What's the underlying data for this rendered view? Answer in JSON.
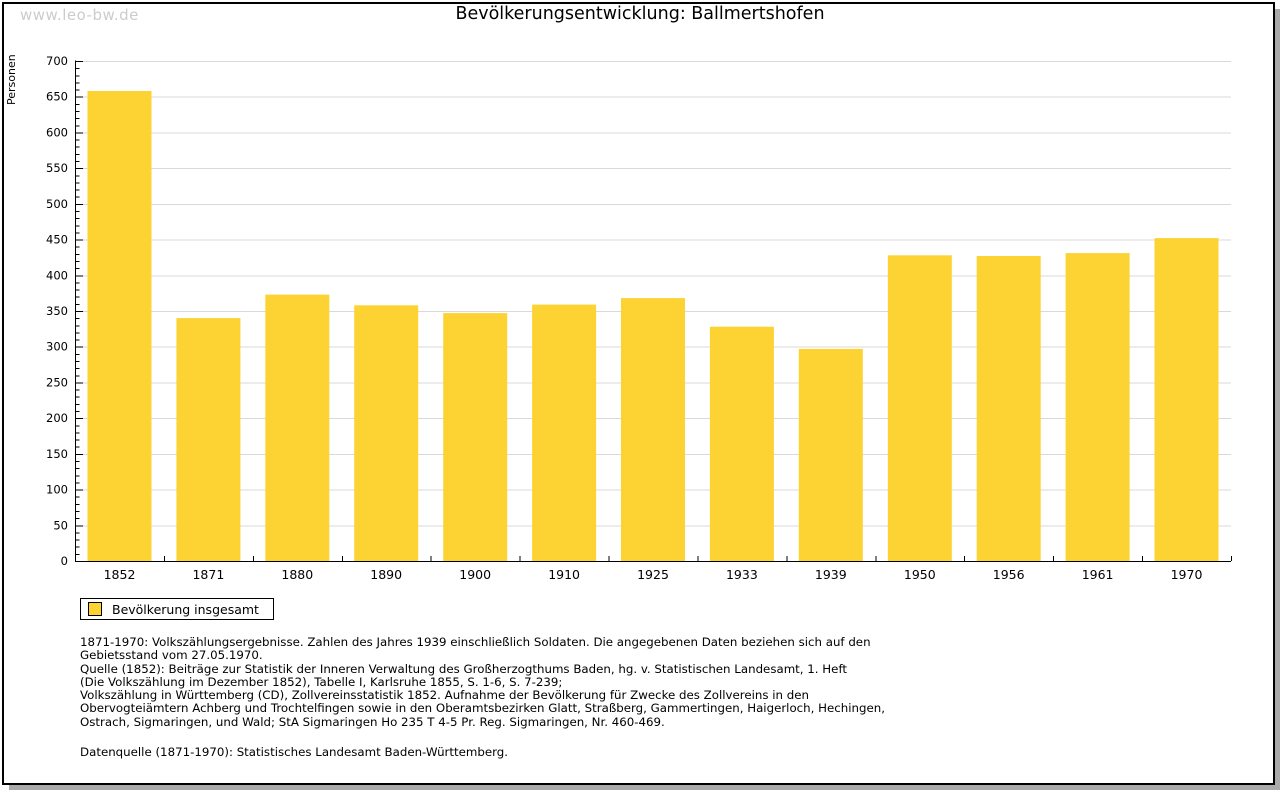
{
  "page": {
    "watermark": "www.leo-bw.de",
    "title": "Bevölkerungsentwicklung: Ballmertshofen"
  },
  "chart_data": {
    "type": "bar",
    "title": "Bevölkerungsentwicklung: Ballmertshofen",
    "xlabel": "",
    "ylabel": "Personen",
    "categories": [
      "1852",
      "1871",
      "1880",
      "1890",
      "1900",
      "1910",
      "1925",
      "1933",
      "1939",
      "1950",
      "1956",
      "1961",
      "1970"
    ],
    "series": [
      {
        "name": "Bevölkerung insgesamt",
        "values": [
          658,
          340,
          373,
          358,
          347,
          359,
          368,
          328,
          297,
          428,
          427,
          431,
          452
        ]
      }
    ],
    "ylim": [
      0,
      700
    ],
    "ytick_step": 50,
    "yminor_step": 10,
    "grid": true,
    "legend_position": "bottom-left",
    "bar_color": "#fcd332",
    "grid_color": "#d9d9d9",
    "axis_color": "#000000"
  },
  "legend": {
    "items": [
      {
        "label": "Bevölkerung insgesamt",
        "color": "#fcd332"
      }
    ]
  },
  "footnotes": {
    "lines": [
      "1871-1970: Volkszählungsergebnisse. Zahlen des Jahres 1939 einschließlich Soldaten. Die angegebenen Daten beziehen sich auf den",
      "Gebietsstand vom 27.05.1970.",
      "Quelle (1852): Beiträge zur Statistik der Inneren Verwaltung des Großherzogthums Baden, hg. v. Statistischen Landesamt, 1. Heft",
      "(Die Volkszählung im Dezember 1852), Tabelle I, Karlsruhe 1855, S. 1-6, S. 7-239;",
      "Volkszählung in Württemberg (CD), Zollvereinsstatistik 1852. Aufnahme der Bevölkerung für Zwecke des Zollvereins in den",
      "Obervogteiämtern Achberg und Trochtelfingen sowie in den Oberamtsbezirken Glatt, Straßberg, Gammertingen, Haigerloch, Hechingen,",
      "Ostrach, Sigmaringen, und Wald; StA Sigmaringen Ho 235 T 4-5 Pr. Reg. Sigmaringen, Nr. 460-469."
    ],
    "datasource": "Datenquelle (1871-1970): Statistisches Landesamt Baden-Württemberg."
  }
}
